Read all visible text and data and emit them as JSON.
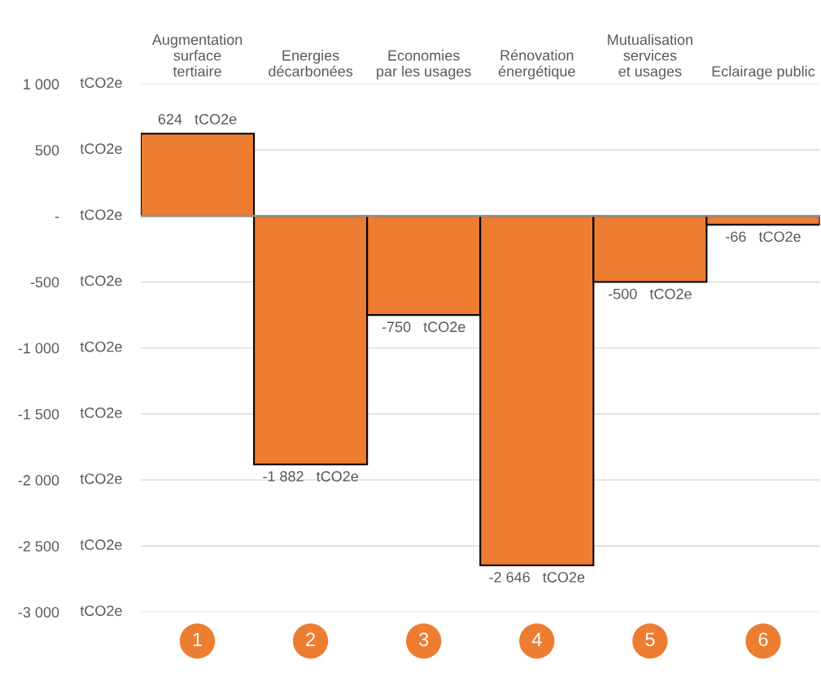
{
  "chart_data": {
    "type": "bar",
    "categories": [
      "Augmentation\nsurface\ntertiaire",
      "Energies\ndécarbonées",
      "Economies\npar les usages",
      "Rénovation\nénergétique",
      "Mutualisation\nservices\net usages",
      "Eclairage public"
    ],
    "values": [
      624,
      -1882,
      -750,
      -2646,
      -500,
      -66
    ],
    "value_labels": [
      "624   tCO2e",
      "-1 882   tCO2e",
      "-750   tCO2e",
      "-2 646   tCO2e",
      "-500   tCO2e",
      "-66   tCO2e"
    ],
    "color": "#ed7d31",
    "ylim": [
      -3000,
      1000
    ],
    "yticks": [
      {
        "value": 1000,
        "label": "1 000"
      },
      500,
      {
        "value": 0,
        "label": "-"
      },
      -500,
      {
        "value": -1000,
        "label": "-1 000"
      },
      {
        "value": -1500,
        "label": "-1 500"
      },
      {
        "value": -2000,
        "label": "-2 000"
      },
      {
        "value": -2500,
        "label": "-2 500"
      },
      {
        "value": -3000,
        "label": "-3 000"
      }
    ],
    "grid": "y",
    "legend": false,
    "annotations": [
      "tCO2e",
      "tCO2e",
      "tCO2e",
      "tCO2e",
      "tCO2e",
      "tCO2e",
      "tCO2e",
      "tCO2e",
      "tCO2e",
      "1",
      "2",
      "3",
      "4",
      "5",
      "6"
    ]
  }
}
